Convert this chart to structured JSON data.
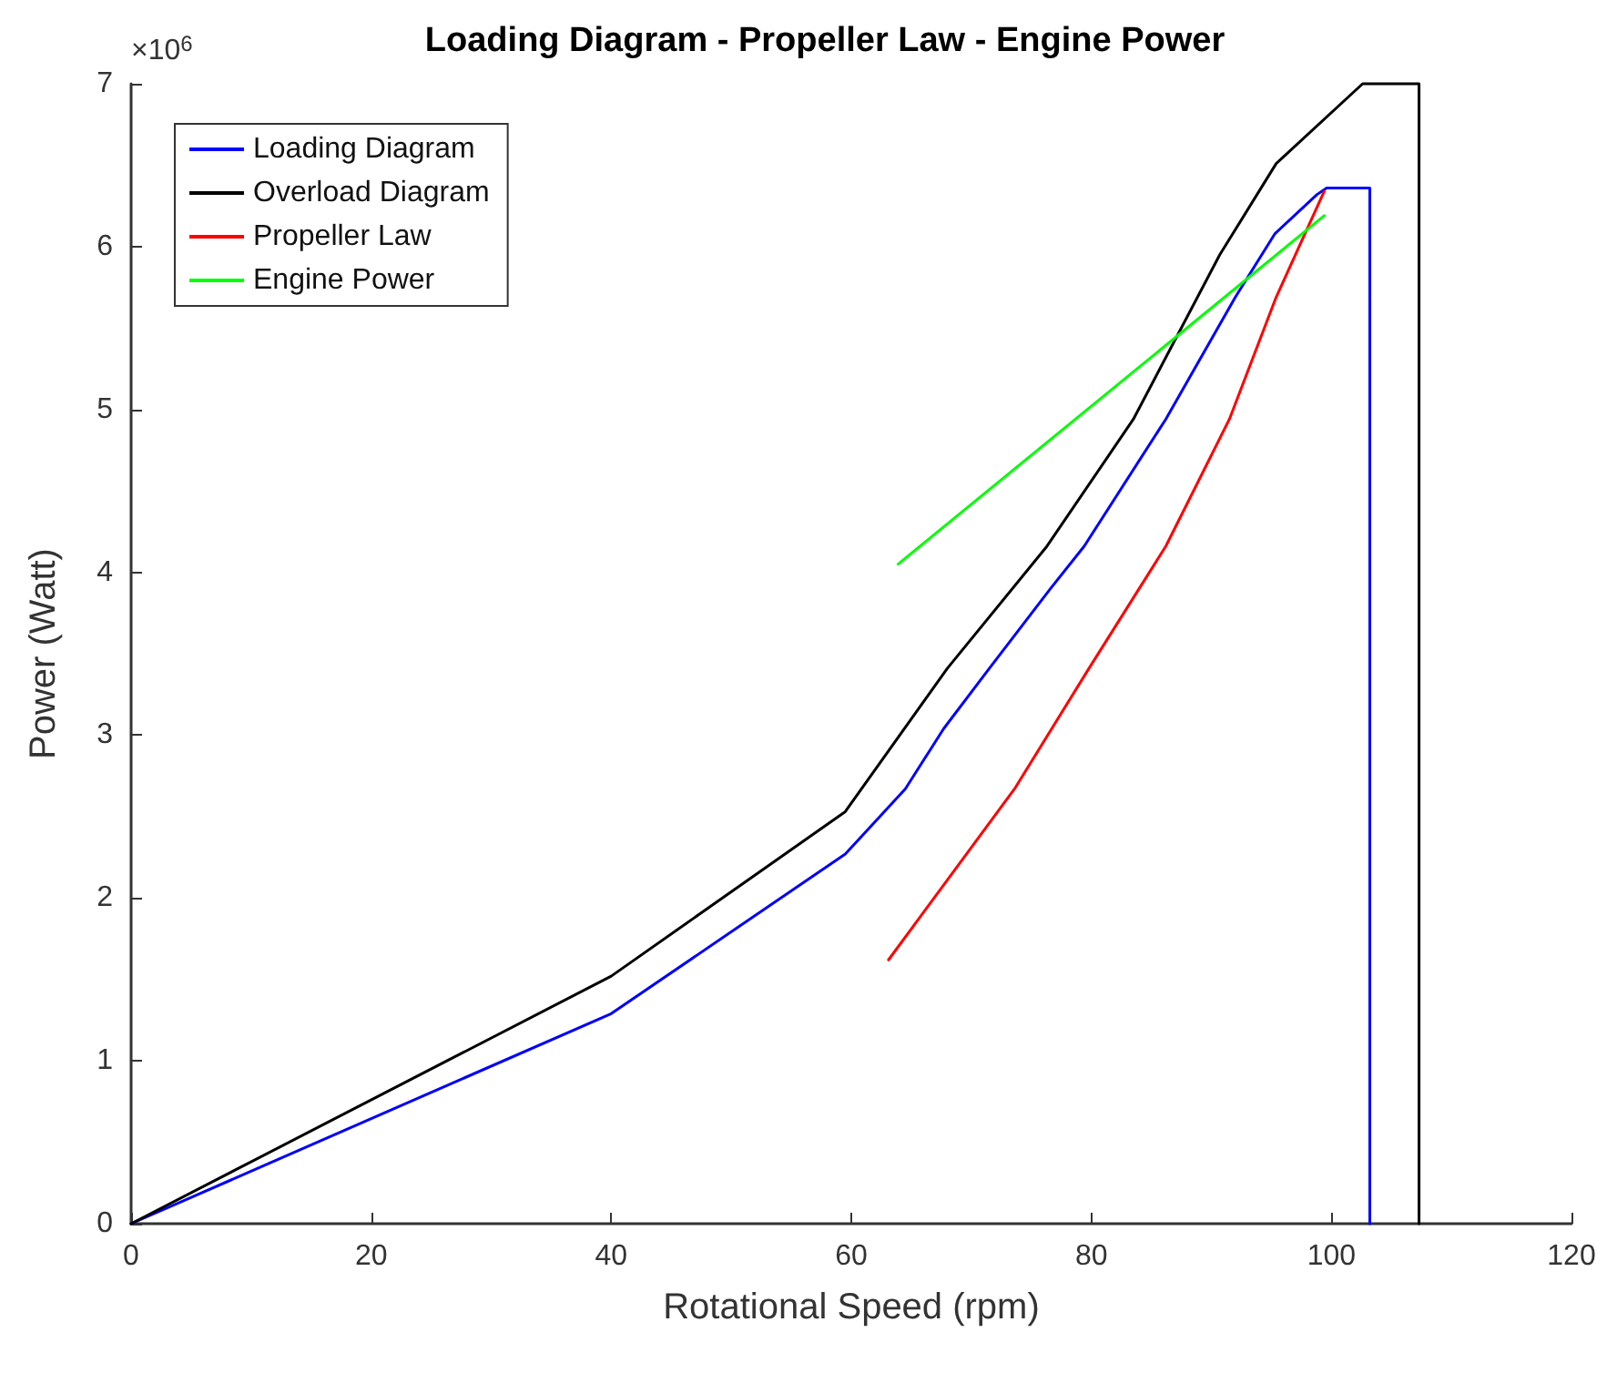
{
  "chart_data": {
    "type": "line",
    "title": "Loading Diagram - Propeller Law - Engine Power",
    "xlabel": "Rotational Speed (rpm)",
    "ylabel": "Power (Watt)",
    "annotations": [
      "×10$^{6}$"
    ],
    "xlim": [
      0,
      120
    ],
    "xticks": [
      0,
      20,
      40,
      60,
      80,
      100,
      120
    ],
    "ylim": [
      0,
      7
    ],
    "yticks": [
      0,
      1,
      2,
      3,
      4,
      5,
      6,
      7
    ],
    "grid": false,
    "legend": "top left",
    "marker": "none",
    "line_style": "solid",
    "series": [
      {
        "name": "Loading Diagram",
        "color": "#0000ff",
        "x": [
          0,
          40,
          59.5,
          64.5,
          67.7,
          71.5,
          76.6,
          79.4,
          86.2,
          92,
          95.3,
          98.8,
          99.6,
          103.2,
          103.2
        ],
        "values": [
          0,
          1.29,
          2.27,
          2.67,
          3.04,
          3.41,
          3.9,
          4.16,
          4.94,
          5.69,
          6.08,
          6.32,
          6.36,
          6.36,
          0
        ]
      },
      {
        "name": "Overload Diagram",
        "color": "#000000",
        "x": [
          0,
          40,
          59.5,
          68,
          76.3,
          83.5,
          90.7,
          95.4,
          102.6,
          107.3,
          107.3
        ],
        "values": [
          0,
          1.52,
          2.53,
          3.41,
          4.16,
          4.94,
          5.95,
          6.51,
          7,
          7,
          0
        ]
      },
      {
        "name": "Propeller Law",
        "color": "#ff0000",
        "x": [
          63.1,
          73.6,
          79.8,
          86.2,
          91.5,
          95.4,
          99.4
        ],
        "values": [
          1.62,
          2.67,
          3.41,
          4.16,
          4.94,
          5.69,
          6.34
        ]
      },
      {
        "name": "Engine Power",
        "color": "#00ff00",
        "x": [
          63.9,
          99.4
        ],
        "values": [
          4.05,
          6.19
        ]
      }
    ]
  }
}
